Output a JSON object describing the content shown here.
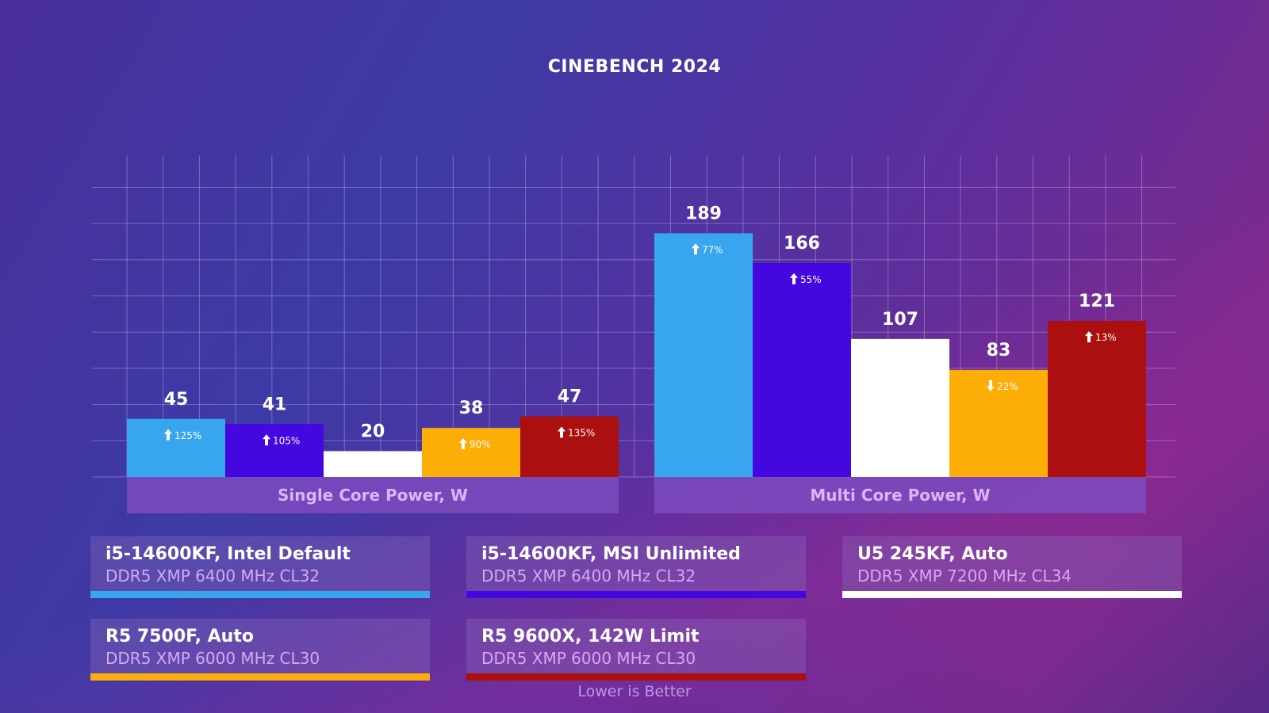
{
  "chart_data": {
    "type": "bar",
    "title": "CINEBENCH 2024",
    "categories": [
      "Single Core Power, W",
      "Multi Core Power, W"
    ],
    "ylim": [
      0,
      220
    ],
    "grid": true,
    "legend_placement": "bottom",
    "series": [
      {
        "name": "i5-14600KF, Intel Default",
        "subtitle": "DDR5 XMP 6400 MHz CL32",
        "color": "#37a6ee",
        "values": [
          45,
          189
        ],
        "deltas": [
          {
            "dir": "up",
            "text": "125%"
          },
          {
            "dir": "up",
            "text": "77%"
          }
        ]
      },
      {
        "name": "i5-14600KF, MSI Unlimited",
        "subtitle": "DDR5 XMP 6400 MHz CL32",
        "color": "#4407e0",
        "values": [
          41,
          166
        ],
        "deltas": [
          {
            "dir": "up",
            "text": "105%"
          },
          {
            "dir": "up",
            "text": "55%"
          }
        ]
      },
      {
        "name": "U5 245KF, Auto",
        "subtitle": "DDR5 XMP 7200 MHz CL34",
        "color": "#ffffff",
        "values": [
          20,
          107
        ],
        "deltas": [
          null,
          null
        ]
      },
      {
        "name": "R5 7500F, Auto",
        "subtitle": "DDR5 XMP 6000 MHz CL30",
        "color": "#fcae07",
        "values": [
          38,
          83
        ],
        "deltas": [
          {
            "dir": "up",
            "text": "90%"
          },
          {
            "dir": "down",
            "text": "22%"
          }
        ]
      },
      {
        "name": "R5 9600X, 142W Limit",
        "subtitle": "DDR5 XMP 6000 MHz CL30",
        "color": "#ab0f10",
        "values": [
          47,
          121
        ],
        "deltas": [
          {
            "dir": "up",
            "text": "135%"
          },
          {
            "dir": "up",
            "text": "13%"
          }
        ]
      }
    ]
  },
  "footnote": "Lower is Better"
}
